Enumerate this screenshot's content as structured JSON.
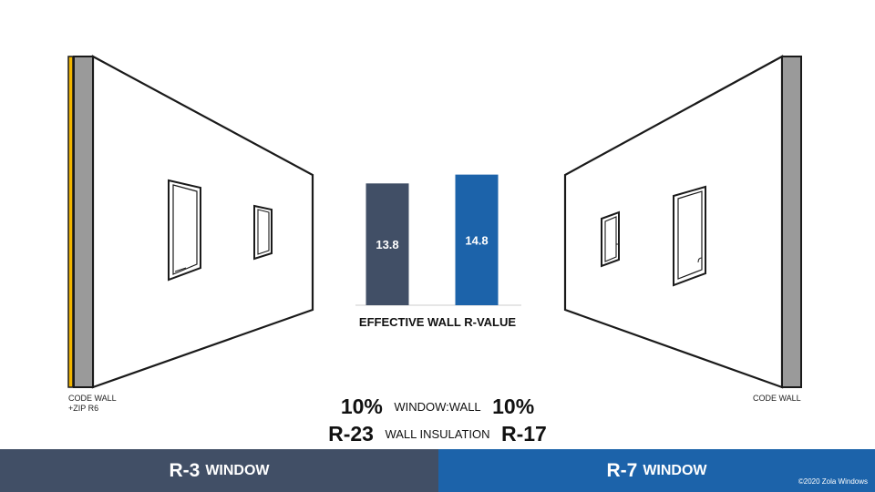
{
  "chart_data": {
    "type": "bar",
    "title": "EFFECTIVE WALL R-VALUE",
    "categories": [
      "R-3 WINDOW",
      "R-7 WINDOW"
    ],
    "values": [
      13.8,
      14.8
    ],
    "value_labels": [
      "13.8",
      "14.8"
    ],
    "colors": [
      "#414f66",
      "#1c63aa"
    ],
    "ylim": [
      0,
      16
    ]
  },
  "labels": {
    "left_wall_line1": "CODE WALL",
    "left_wall_line2": "+ZIP R6",
    "right_wall": "CODE WALL"
  },
  "stats": {
    "ratio_left": "10%",
    "ratio_label": "WINDOW:WALL",
    "ratio_right": "10%",
    "insulation_left": "R-23",
    "insulation_label": "WALL INSULATION",
    "insulation_right": "R-17"
  },
  "footer": {
    "left_lead": "R-3",
    "left_tail": "WINDOW",
    "right_lead": "R-7",
    "right_tail": "WINDOW",
    "copyright": "©2020 Zola Windows"
  },
  "colors": {
    "left_accent": "#414f66",
    "right_accent": "#1c63aa",
    "zip_stripe": "#f2b600",
    "wall_edge": "#999999"
  }
}
